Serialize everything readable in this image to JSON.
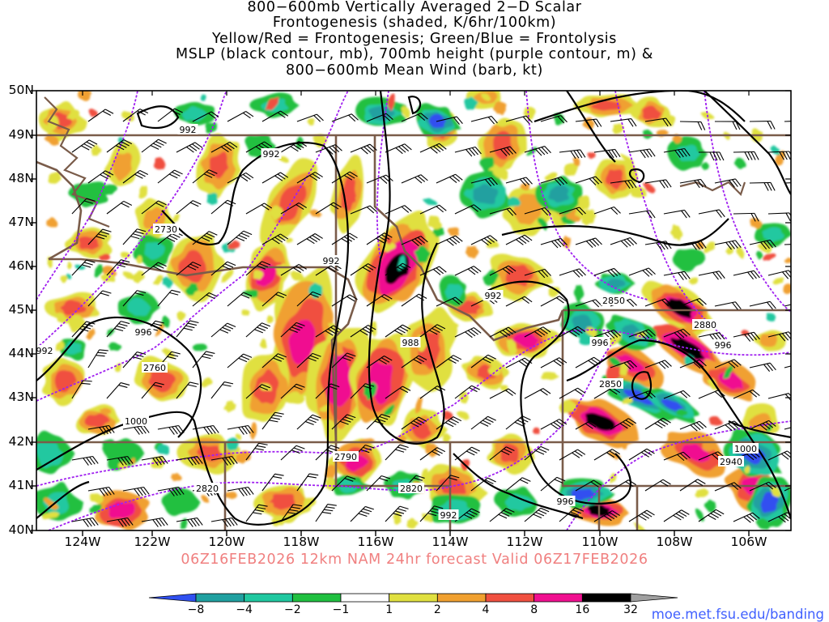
{
  "title": {
    "line1": "800−600mb Vertically Averaged 2−D Scalar",
    "line2": "Frontogenesis (shaded, K/6hr/100km)",
    "line3": "Yellow/Red = Frontogenesis;  Green/Blue = Frontolysis",
    "line4": "MSLP (black contour, mb), 700mb height (purple contour, m) &",
    "line5": "800−600mb Mean Wind (barb, kt)"
  },
  "map": {
    "lat_labels": [
      "50N",
      "49N",
      "48N",
      "47N",
      "46N",
      "45N",
      "44N",
      "43N",
      "42N",
      "41N",
      "40N"
    ],
    "lon_labels": [
      "124W",
      "122W",
      "120W",
      "118W",
      "116W",
      "114W",
      "112W",
      "110W",
      "108W",
      "106W"
    ],
    "contour_labels": [
      "992",
      "992",
      "2730",
      "992",
      "996",
      "992",
      "2760",
      "988",
      "992",
      "2850",
      "2880",
      "996",
      "996",
      "2850",
      "1000",
      "2790",
      "2820",
      "2820",
      "992",
      "996",
      "1000",
      "2940"
    ],
    "colors": {
      "mslp_contour": "#000000",
      "height_contour": "#a020f0",
      "borders": "#7a5c4a",
      "barbs": "#000000"
    }
  },
  "subtitle": {
    "text": "06Z16FEB2026 12km NAM 24hr forecast Valid 06Z17FEB2026",
    "color": "#f08080"
  },
  "colorbar": {
    "labels": [
      "−8",
      "−4",
      "−2",
      "−1",
      "1",
      "2",
      "4",
      "8",
      "16",
      "32"
    ],
    "colors": [
      "#3050f0",
      "#20a0a0",
      "#20c8a0",
      "#20c040",
      "#ffffff",
      "#e0e040",
      "#f0a030",
      "#f05040",
      "#f01090",
      "#000000",
      "#a0a0a0"
    ]
  },
  "footer": {
    "url": "moe.met.fsu.edu/banding",
    "url_color": "#4060ff"
  }
}
